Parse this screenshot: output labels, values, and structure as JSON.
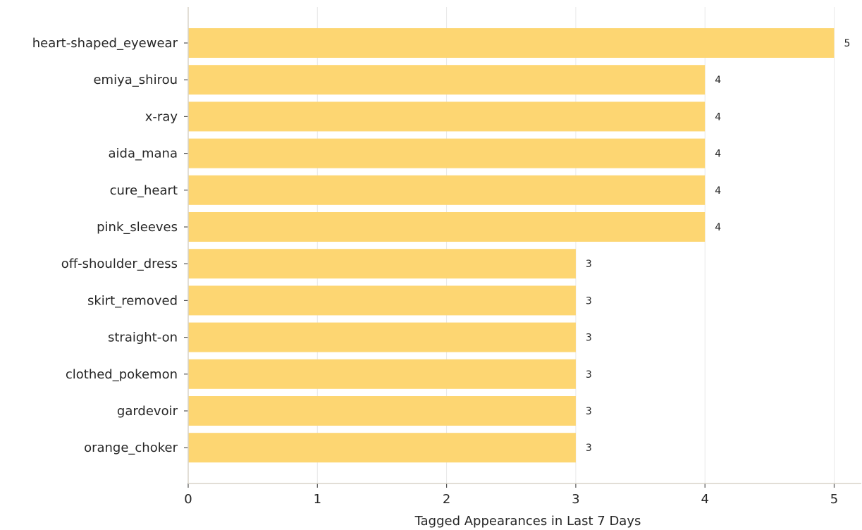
{
  "chart_data": {
    "type": "bar",
    "orientation": "horizontal",
    "categories": [
      "heart-shaped_eyewear",
      "emiya_shirou",
      "x-ray",
      "aida_mana",
      "cure_heart",
      "pink_sleeves",
      "off-shoulder_dress",
      "skirt_removed",
      "straight-on",
      "clothed_pokemon",
      "gardevoir",
      "orange_choker"
    ],
    "values": [
      5,
      4,
      4,
      4,
      4,
      4,
      3,
      3,
      3,
      3,
      3,
      3
    ],
    "title": "",
    "xlabel": "Tagged Appearances in Last 7 Days",
    "ylabel": "",
    "xlim": [
      0,
      5.2
    ],
    "xticks": [
      "0",
      "1",
      "2",
      "3",
      "4",
      "5"
    ],
    "grid": "vertical",
    "legend": "none",
    "bar_color": "#fdd672",
    "axis_color": "#d8d4c8",
    "grid_color": "#e8e8e8"
  }
}
